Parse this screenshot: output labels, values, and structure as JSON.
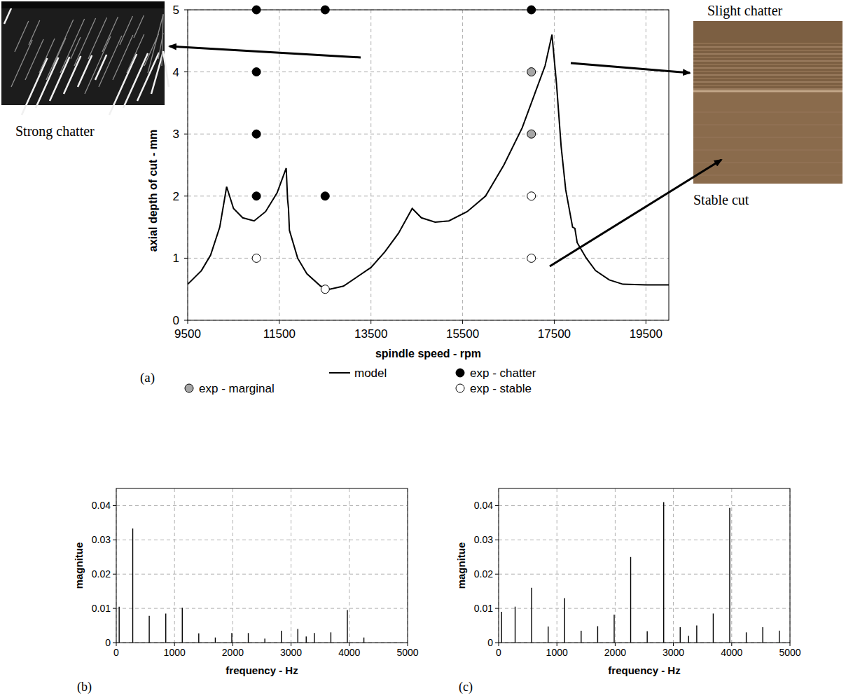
{
  "chart_data": [
    {
      "type": "line",
      "panel": "(a)",
      "x_label": "spindle speed - rpm",
      "y_label": "axial depth of cut - mm",
      "xlim": [
        9500,
        20000
      ],
      "ylim": [
        0,
        5
      ],
      "xticks": [
        9500,
        11500,
        13500,
        15500,
        17500,
        19500
      ],
      "yticks": [
        0,
        1,
        2,
        3,
        4,
        5
      ],
      "grid": true,
      "legend": "bottom",
      "annotations": [
        "Strong chatter",
        "Slight chatter",
        "Stable cut"
      ],
      "series": [
        {
          "name": "model",
          "type": "line",
          "color": "#000000",
          "line_style": "solid",
          "x": [
            9500,
            9800,
            10000,
            10200,
            10350,
            10500,
            10700,
            10950,
            11200,
            11450,
            11650,
            11680,
            11700,
            11720,
            11900,
            12100,
            12400,
            12600,
            12900,
            13200,
            13500,
            13800,
            14100,
            14400,
            14600,
            14900,
            15200,
            15600,
            16000,
            16400,
            16800,
            17100,
            17300,
            17450,
            17550,
            17650,
            17750,
            17850,
            17900,
            17950,
            18000,
            18200,
            18400,
            18700,
            19000,
            19500,
            20000
          ],
          "values": [
            0.58,
            0.8,
            1.05,
            1.5,
            2.15,
            1.8,
            1.65,
            1.6,
            1.75,
            2.05,
            2.45,
            1.95,
            1.8,
            1.45,
            1.0,
            0.75,
            0.55,
            0.5,
            0.55,
            0.7,
            0.85,
            1.1,
            1.4,
            1.8,
            1.65,
            1.58,
            1.6,
            1.75,
            2.0,
            2.5,
            3.1,
            3.7,
            4.1,
            4.6,
            3.8,
            2.8,
            2.1,
            1.7,
            1.5,
            1.48,
            1.25,
            1.0,
            0.8,
            0.65,
            0.58,
            0.57,
            0.57
          ]
        },
        {
          "name": "exp - chatter",
          "type": "scatter",
          "color": "#000000",
          "marker": "circle",
          "x": [
            11000,
            11000,
            11000,
            11000,
            12500,
            12500,
            17000
          ],
          "values": [
            5,
            4,
            3,
            2,
            5,
            2,
            5
          ]
        },
        {
          "name": "exp - marginal",
          "type": "scatter",
          "color": "#a6a6a6",
          "marker": "circle",
          "x": [
            17000,
            17000
          ],
          "values": [
            4,
            3
          ]
        },
        {
          "name": "exp - stable",
          "type": "scatter",
          "color": "#ffffff",
          "marker": "circle",
          "x": [
            11000,
            12500,
            17000,
            17000
          ],
          "values": [
            1,
            0.5,
            2,
            1
          ]
        }
      ]
    },
    {
      "type": "stem",
      "panel": "(b)",
      "x_label": "frequency - Hz",
      "y_label": "magnitue",
      "xlim": [
        0,
        5000
      ],
      "ylim": [
        0,
        0.045
      ],
      "xticks": [
        0,
        1000,
        2000,
        3000,
        4000,
        5000
      ],
      "yticks": [
        0,
        0.01,
        0.02,
        0.03,
        0.04
      ],
      "grid": true,
      "series": [
        {
          "color": "#000000",
          "x": [
            50,
            283,
            566,
            850,
            1133,
            1416,
            1700,
            1983,
            2266,
            2550,
            2833,
            3116,
            3260,
            3400,
            3683,
            3966,
            4250
          ],
          "values": [
            0.0105,
            0.0333,
            0.0078,
            0.0085,
            0.0102,
            0.0027,
            0.0015,
            0.0028,
            0.0028,
            0.0012,
            0.0035,
            0.004,
            0.0018,
            0.0028,
            0.003,
            0.0095,
            0.0015
          ]
        }
      ]
    },
    {
      "type": "stem",
      "panel": "(c)",
      "x_label": "frequency - Hz",
      "y_label": "magnitue",
      "xlim": [
        0,
        5000
      ],
      "ylim": [
        0,
        0.045
      ],
      "xticks": [
        0,
        1000,
        2000,
        3000,
        4000,
        5000
      ],
      "yticks": [
        0,
        0.01,
        0.02,
        0.03,
        0.04
      ],
      "grid": true,
      "series": [
        {
          "color": "#000000",
          "x": [
            50,
            283,
            566,
            850,
            1133,
            1416,
            1700,
            1983,
            2266,
            2550,
            2833,
            3116,
            3260,
            3400,
            3683,
            3966,
            4250,
            4533,
            4816
          ],
          "values": [
            0.009,
            0.0105,
            0.016,
            0.0047,
            0.013,
            0.0035,
            0.0048,
            0.0082,
            0.025,
            0.0033,
            0.041,
            0.0045,
            0.002,
            0.005,
            0.0085,
            0.0393,
            0.003,
            0.0045,
            0.0035
          ]
        }
      ]
    }
  ]
}
